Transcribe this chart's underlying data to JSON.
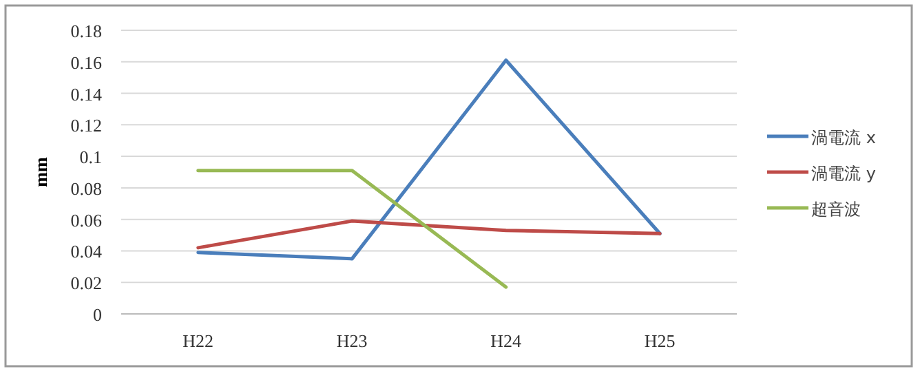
{
  "chart_data": {
    "type": "line",
    "ylabel": "mm",
    "categories": [
      "H22",
      "H23",
      "H24",
      "H25"
    ],
    "series": [
      {
        "name": "渦電流 x",
        "color": "#4a7ebb",
        "values": [
          0.039,
          0.035,
          0.161,
          0.051
        ]
      },
      {
        "name": "渦電流 y",
        "color": "#be4b48",
        "values": [
          0.042,
          0.059,
          0.053,
          0.051
        ]
      },
      {
        "name": "超音波",
        "color": "#98b954",
        "values": [
          0.091,
          0.091,
          0.017,
          null
        ]
      }
    ],
    "ylim": [
      0,
      0.18
    ],
    "yticks": [
      0,
      0.02,
      0.04,
      0.06,
      0.08,
      0.1,
      0.12,
      0.14,
      0.16,
      0.18
    ],
    "grid": "y",
    "legend": "right",
    "marker": "none",
    "line_style": "solid"
  }
}
